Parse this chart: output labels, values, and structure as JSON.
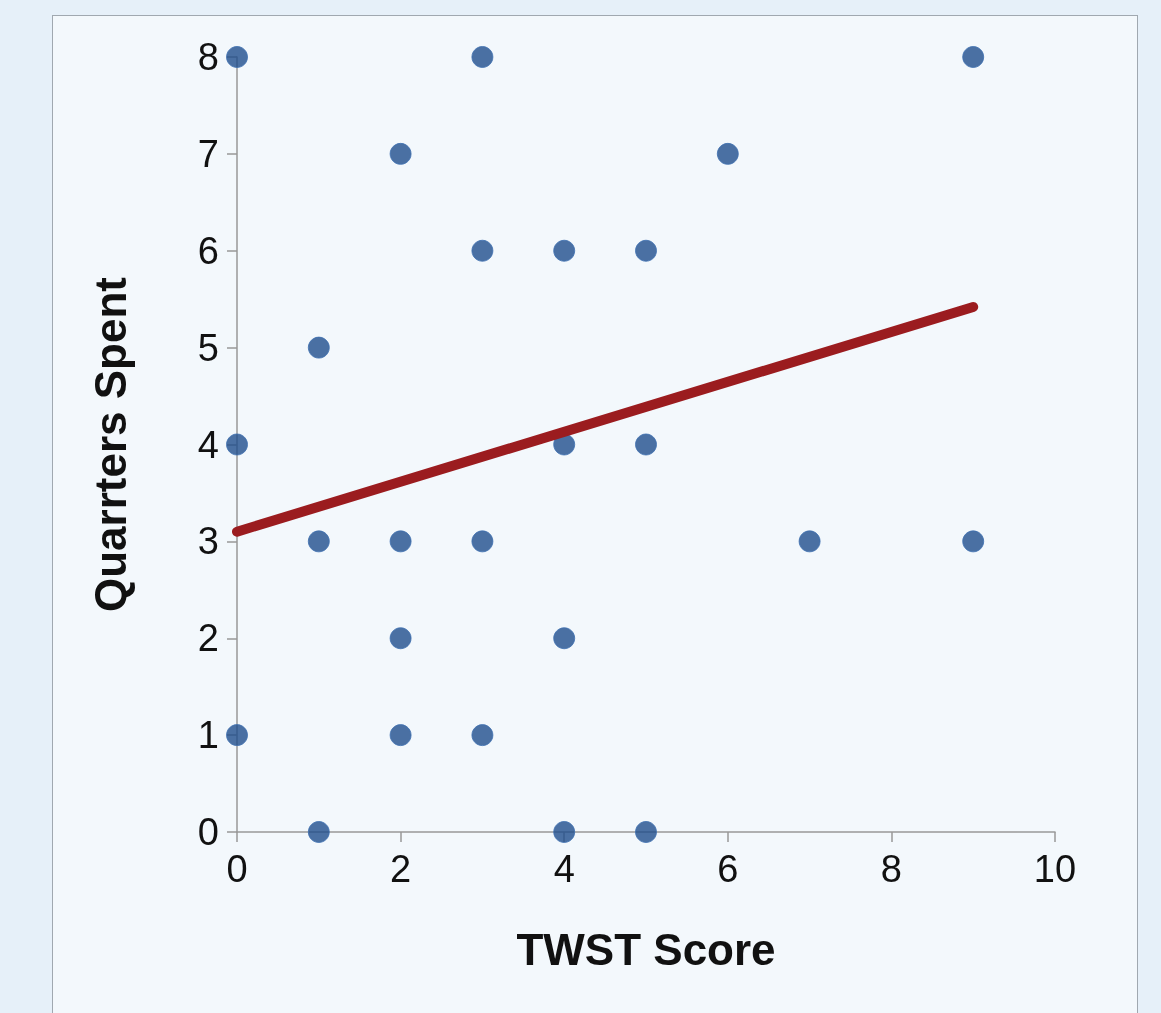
{
  "chart_data": {
    "type": "scatter",
    "xlabel": "TWST Score",
    "ylabel": "Quarrters Spent",
    "xlim": [
      0,
      10
    ],
    "xticks": [
      0,
      2,
      4,
      6,
      8,
      10
    ],
    "ylim": [
      0,
      8
    ],
    "yticks": [
      0,
      1,
      2,
      3,
      4,
      5,
      6,
      7,
      8
    ],
    "grid": false,
    "series": [
      {
        "color": "#1f4e8c",
        "marker": "circle",
        "x": [
          0,
          3,
          9,
          2,
          6,
          3,
          4,
          5,
          1,
          0,
          4,
          5,
          1,
          2,
          3,
          7,
          9,
          2,
          4,
          0,
          2,
          3,
          1,
          4,
          5
        ],
        "values": [
          8,
          8,
          8,
          7,
          7,
          6,
          6,
          6,
          5,
          4,
          4,
          4,
          3,
          3,
          3,
          3,
          3,
          2,
          2,
          1,
          1,
          1,
          0,
          0,
          0
        ]
      },
      {
        "type": "line",
        "color": "#9b1c1f",
        "line_style": "solid",
        "marker": "none",
        "x": [
          0,
          9
        ],
        "values": [
          3.1,
          5.42
        ]
      }
    ]
  }
}
